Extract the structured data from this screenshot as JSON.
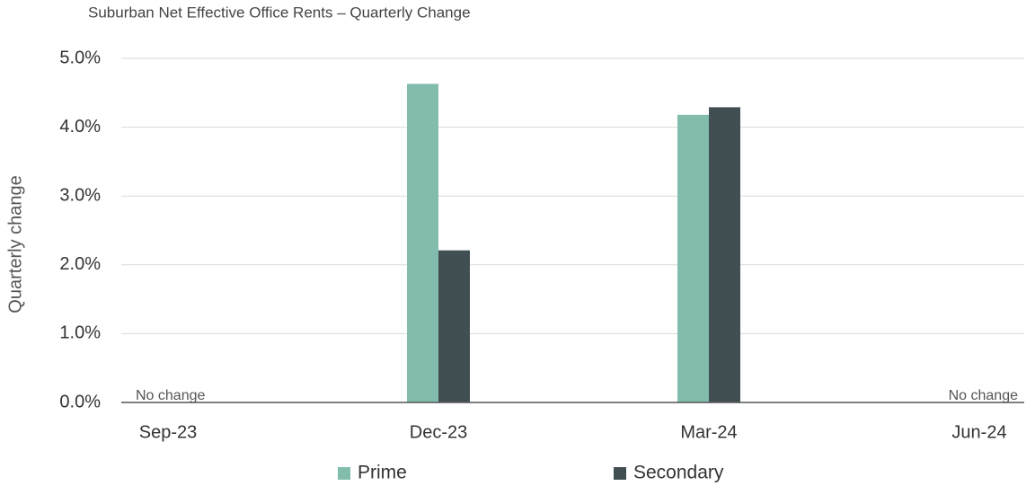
{
  "chart_data": {
    "type": "bar",
    "title": "Suburban Net Effective Office Rents – Quarterly Change",
    "y_label": "Quarterly change",
    "categories": [
      "Sep-23",
      "Dec-23",
      "Mar-24",
      "Jun-24"
    ],
    "series": [
      {
        "name": "Prime",
        "color": "#82bcad",
        "values": [
          0,
          4.63,
          4.18,
          0
        ]
      },
      {
        "name": "Secondary",
        "color": "#414f52",
        "values": [
          0,
          2.21,
          4.29,
          0
        ]
      }
    ],
    "annotations": [
      "No change",
      "No change"
    ],
    "ylim": [
      0,
      5
    ],
    "yticks": [
      {
        "value": 0,
        "label": "0.0%"
      },
      {
        "value": 1,
        "label": "1.0%"
      },
      {
        "value": 2,
        "label": "2.0%"
      },
      {
        "value": 3,
        "label": "3.0%"
      },
      {
        "value": 4,
        "label": "4.0%"
      },
      {
        "value": 5,
        "label": "5.0%"
      }
    ],
    "grid": true,
    "legend": "bottom"
  }
}
